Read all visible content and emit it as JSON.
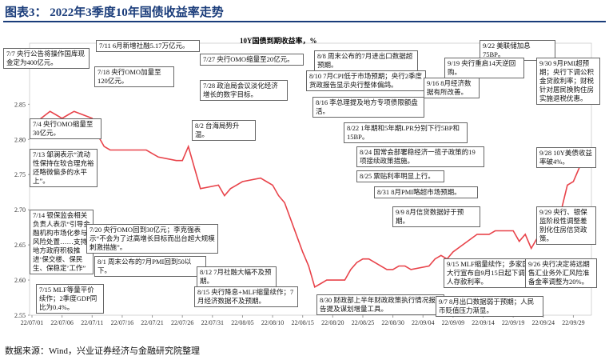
{
  "header": {
    "title": "图表3：  2022年3季度10年国债收益率走势"
  },
  "chart_data": {
    "type": "line",
    "title": "10Y国债到期收益率，%",
    "series": [
      {
        "name": "10Y国债到期收益率",
        "color": "#e8434a",
        "x": [
          "2022-07-01",
          "2022-07-04",
          "2022-07-05",
          "2022-07-06",
          "2022-07-07",
          "2022-07-08",
          "2022-07-11",
          "2022-07-12",
          "2022-07-13",
          "2022-07-14",
          "2022-07-15",
          "2022-07-18",
          "2022-07-19",
          "2022-07-20",
          "2022-07-21",
          "2022-07-22",
          "2022-07-25",
          "2022-07-26",
          "2022-07-27",
          "2022-07-28",
          "2022-07-29",
          "2022-08-01",
          "2022-08-02",
          "2022-08-03",
          "2022-08-04",
          "2022-08-05",
          "2022-08-08",
          "2022-08-09",
          "2022-08-10",
          "2022-08-11",
          "2022-08-12",
          "2022-08-15",
          "2022-08-16",
          "2022-08-17",
          "2022-08-18",
          "2022-08-19",
          "2022-08-22",
          "2022-08-23",
          "2022-08-24",
          "2022-08-25",
          "2022-08-26",
          "2022-08-29",
          "2022-08-30",
          "2022-08-31",
          "2022-09-01",
          "2022-09-02",
          "2022-09-05",
          "2022-09-06",
          "2022-09-07",
          "2022-09-08",
          "2022-09-09",
          "2022-09-13",
          "2022-09-14",
          "2022-09-15",
          "2022-09-16",
          "2022-09-19",
          "2022-09-20",
          "2022-09-21",
          "2022-09-22",
          "2022-09-23",
          "2022-09-26",
          "2022-09-27",
          "2022-09-28",
          "2022-09-29",
          "2022-09-30"
        ],
        "values": [
          2.82,
          2.84,
          2.835,
          2.83,
          2.835,
          2.84,
          2.83,
          2.805,
          2.79,
          2.785,
          2.785,
          2.785,
          2.785,
          2.785,
          2.78,
          2.775,
          2.77,
          2.77,
          2.79,
          2.76,
          2.73,
          2.735,
          2.72,
          2.73,
          2.735,
          2.74,
          2.745,
          2.74,
          2.735,
          2.72,
          2.71,
          2.64,
          2.62,
          2.59,
          2.595,
          2.6,
          2.6,
          2.615,
          2.625,
          2.63,
          2.63,
          2.615,
          2.615,
          2.62,
          2.62,
          2.615,
          2.62,
          2.63,
          2.635,
          2.63,
          2.64,
          2.665,
          2.665,
          2.665,
          2.67,
          2.67,
          2.655,
          2.665,
          2.645,
          2.66,
          2.68,
          2.7,
          2.735,
          2.74,
          2.76
        ]
      }
    ],
    "xlim": [
      "2022-07-01",
      "2022-10-02"
    ],
    "xticks": [
      {
        "value": "2022-07-01",
        "label": "22/07/01"
      },
      {
        "value": "2022-07-06",
        "label": "22/07/06"
      },
      {
        "value": "2022-07-11",
        "label": "22/07/11"
      },
      {
        "value": "2022-07-16",
        "label": "22/07/16"
      },
      {
        "value": "2022-07-21",
        "label": "22/07/21"
      },
      {
        "value": "2022-07-26",
        "label": "22/07/26"
      },
      {
        "value": "2022-07-31",
        "label": "22/07/31"
      },
      {
        "value": "2022-08-05",
        "label": "22/08/05"
      },
      {
        "value": "2022-08-10",
        "label": "22/08/10"
      },
      {
        "value": "2022-08-15",
        "label": "22/08/15"
      },
      {
        "value": "2022-08-20",
        "label": "22/08/20"
      },
      {
        "value": "2022-08-25",
        "label": "22/08/25"
      },
      {
        "value": "2022-08-30",
        "label": "22/08/30"
      },
      {
        "value": "2022-09-04",
        "label": "22/09/04"
      },
      {
        "value": "2022-09-09",
        "label": "22/09/09"
      },
      {
        "value": "2022-09-14",
        "label": "22/09/14"
      },
      {
        "value": "2022-09-19",
        "label": "22/09/19"
      },
      {
        "value": "2022-09-24",
        "label": "22/09/24"
      },
      {
        "value": "2022-09-29",
        "label": "22/09/29"
      }
    ],
    "ylim": [
      2.55,
      2.88
    ],
    "yticks": [
      2.55,
      {
        "value": 2.6,
        "label": "2.60"
      },
      2.65,
      {
        "value": 2.7,
        "label": "2.70"
      },
      2.75,
      {
        "value": 2.8,
        "label": "2.80"
      },
      2.85
    ],
    "annotations": [
      "7/7 央行公告将操作国库现金定为400亿元。",
      "7/11 6月新增社融5.17万亿元。",
      "7/18 央行OMO加量至120亿元。",
      "7/27 央行OMO缩量至20亿元。",
      "7/28 政治局会议淡化经济增长的数字目标。",
      "8/8 周末公布的7月进出口数据超预期。",
      "8/10 7月CPI低于市场预期；央行2季度货政报告显示央行整体偏鸽。",
      "9/22 美联储加息75BP。",
      "9/19 央行重启14天逆回购。",
      "9/30 9月PMI超预期；央行下调公积金贷款利率；财税针对居民换购住房实施退税优惠。",
      "9/16 8月经济数据有所改善。",
      "8/16 李总理提及地方专项债限额盘活。",
      "7/4 央行OMO缩量至30亿元。",
      "8/2 台海局势升温。",
      "8/22 1年期和5年期LPR分别下行5BP和15BP。",
      "8/24 国常会部署稳经济一揽子政策的19项接续政策措施。",
      "9/28 10Y美债收益率破4%。",
      "7/13 邹澜表示“流动性保持在较合理充裕还略微偏多的水平上”。",
      "8/25 票贴利率明显上行。",
      "8/31 8月PMI略超市场预期。",
      "7/14 银保监会相关负责人表示“引导金融机构市场化参与风险处置……支持地方政府积极推进‘保交楼、保民生、保稳定’工作”",
      "7/20 央行OMO回到30亿元；李克强表示“不会为了过高增长目标而出台超大规模刺激措施”。",
      "9/9 8月信贷数据好于预期。",
      "9/29 央行、银保监阶段性调整差别化住房信贷政策。",
      "8/1 周末公布的7月PMI回到50以下。",
      "8/12 7月社融大幅不及预期。",
      "9/15 MLF缩量续作；多家国有大行宣布自9月15日起下调个人存款利率。",
      "9/26 央行决定将远期售汇业务外汇风险准备金率调整为20%。",
      "7/15 MLF等量平价续作；2季度GDP同比为0.4%。",
      "8/15 央行降息+MLF缩量续作；7月经济数据不及预期。",
      "8/30 财政部上半年财政政策执行情况报告提及谋划增量工具。",
      "9/7 8月出口数据弱于预期；人民币贬值压力渐显。"
    ]
  },
  "footer": {
    "source": "数据来源：Wind，兴业证券经济与金融研究院整理"
  }
}
